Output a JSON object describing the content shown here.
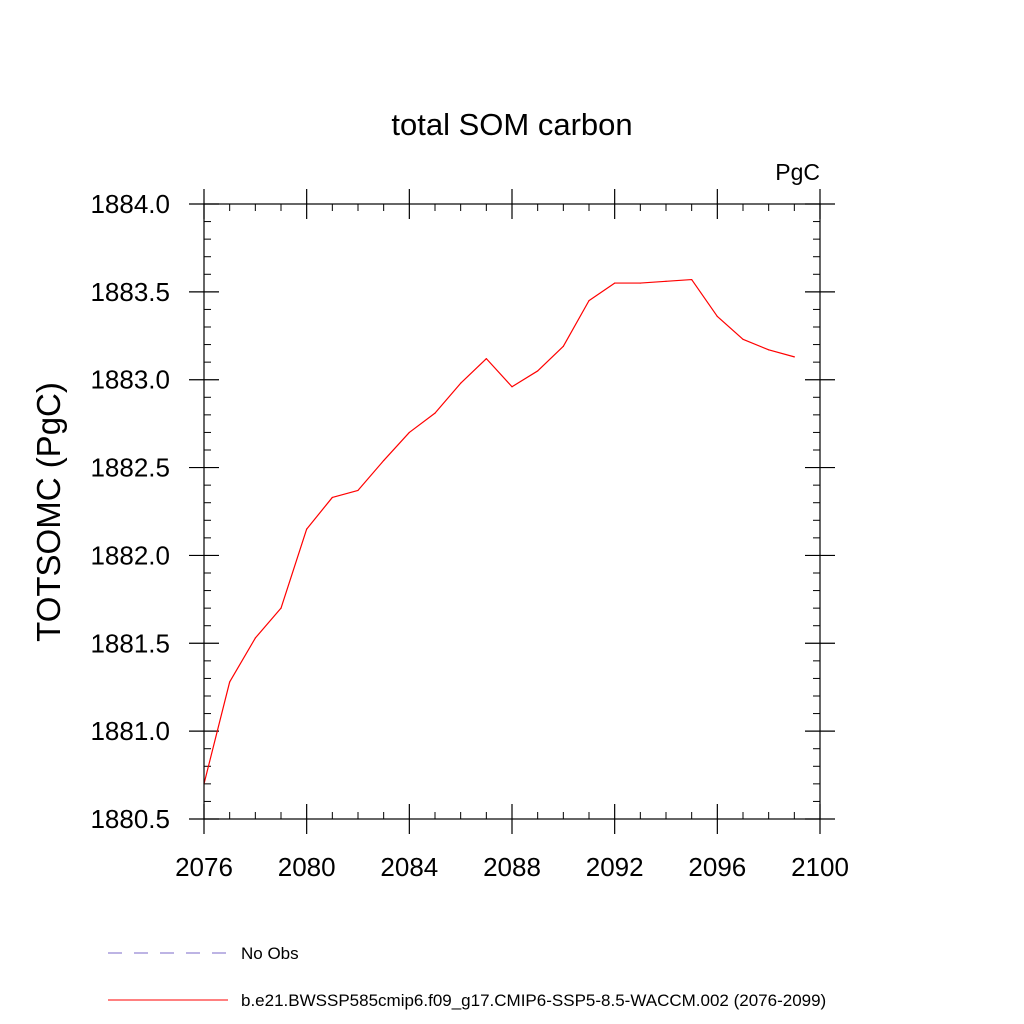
{
  "chart_data": {
    "type": "line",
    "title": "total SOM carbon",
    "units_label": "PgC",
    "xlabel": "",
    "ylabel": "TOTSOMC  (PgC)",
    "xlim": [
      2076,
      2100
    ],
    "ylim": [
      1880.5,
      1884.0
    ],
    "x_ticks": [
      2076,
      2080,
      2084,
      2088,
      2092,
      2096,
      2100
    ],
    "x_tick_labels": [
      "2076",
      "2080",
      "2084",
      "2088",
      "2092",
      "2096",
      "2100"
    ],
    "y_ticks": [
      1880.5,
      1881.0,
      1881.5,
      1882.0,
      1882.5,
      1883.0,
      1883.5,
      1884.0
    ],
    "y_tick_labels": [
      "1880.5",
      "1881.0",
      "1881.5",
      "1882.0",
      "1882.5",
      "1883.0",
      "1883.5",
      "1884.0"
    ],
    "x_minor_step": 1,
    "y_minor_step": 0.1,
    "series": [
      {
        "name": "b.e21.BWSSP585cmip6.f09_g17.CMIP6-SSP5-8.5-WACCM.002 (2076-2099)",
        "color": "#ff0000",
        "dash": "solid",
        "x": [
          2076,
          2077,
          2078,
          2079,
          2080,
          2081,
          2082,
          2083,
          2084,
          2085,
          2086,
          2087,
          2088,
          2089,
          2090,
          2091,
          2092,
          2093,
          2094,
          2095,
          2096,
          2097,
          2098,
          2099
        ],
        "values": [
          1880.7,
          1881.28,
          1881.53,
          1881.7,
          1882.15,
          1882.33,
          1882.37,
          1882.54,
          1882.7,
          1882.81,
          1882.98,
          1883.12,
          1882.96,
          1883.05,
          1883.19,
          1883.45,
          1883.55,
          1883.55,
          1883.56,
          1883.57,
          1883.36,
          1883.23,
          1883.17,
          1883.13
        ]
      }
    ],
    "legend": [
      {
        "label": "No Obs",
        "color": "#7b68c8",
        "dash": "dashed"
      },
      {
        "label": "b.e21.BWSSP585cmip6.f09_g17.CMIP6-SSP5-8.5-WACCM.002 (2076-2099)",
        "color": "#ff0000",
        "dash": "solid"
      }
    ],
    "legend_position": "bottom-left",
    "grid": false
  }
}
